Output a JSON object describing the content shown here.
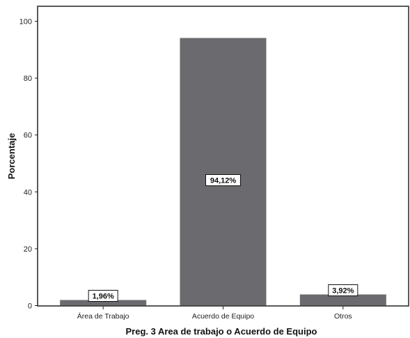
{
  "chart_data": {
    "type": "bar",
    "categories": [
      "Área de Trabajo",
      "Acuerdo de Equipo",
      "Otros"
    ],
    "values": [
      1.96,
      94.12,
      3.92
    ],
    "data_labels": [
      "1,96%",
      "94,12%",
      "3,92%"
    ],
    "xlabel": "Preg. 3 Area de trabajo o Acuerdo de Equipo",
    "ylabel": "Porcentaje",
    "ylim": [
      0,
      104
    ],
    "yticks": [
      0,
      20,
      40,
      60,
      80,
      100
    ],
    "grid": false,
    "bar_color": "#6b6b6f"
  }
}
